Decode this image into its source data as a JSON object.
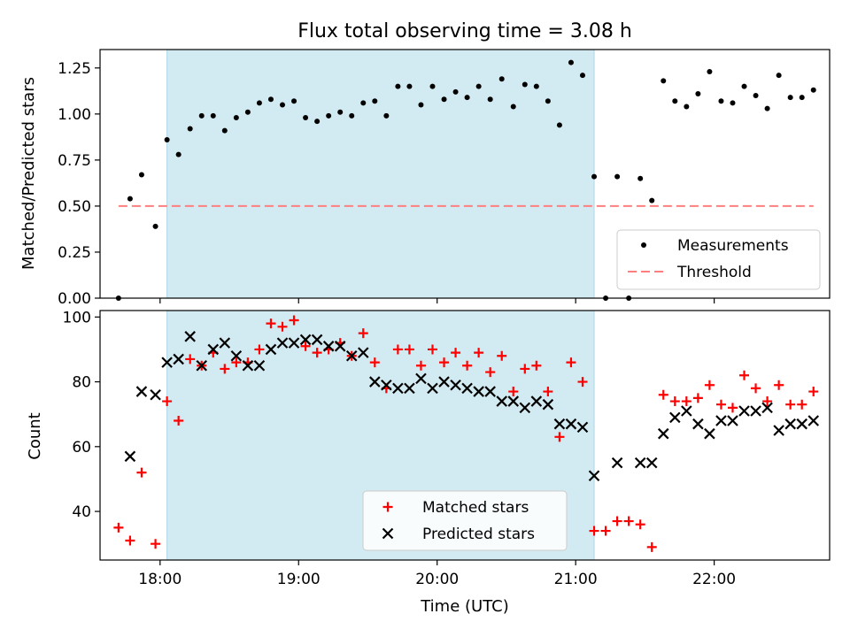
{
  "title": "Flux total observing time = 3.08 h",
  "colors": {
    "span": "#add8e6",
    "measurement": "#000000",
    "threshold": "#ff7f7f",
    "matched": "#ff0000",
    "predicted": "#000000"
  },
  "chart_data": [
    {
      "type": "scatter",
      "ylabel": "Matched/Predicted stars",
      "xlim": [
        "17:34",
        "22:50"
      ],
      "ylim": [
        0,
        1.35
      ],
      "yticks": [
        0,
        0.25,
        0.5,
        0.75,
        1.0,
        1.25
      ],
      "ytick_labels": [
        "0.00",
        "0.25",
        "0.50",
        "0.75",
        "1.00",
        "1.25"
      ],
      "xticks": [
        "18:00",
        "19:00",
        "20:00",
        "21:00",
        "22:00"
      ],
      "xtick_labels": [
        "18:00",
        "19:00",
        "20:00",
        "21:00",
        "22:00"
      ],
      "shaded_span": [
        "18:03",
        "21:08"
      ],
      "legend": {
        "position": "lower-right",
        "entries": [
          "Measurements",
          "Threshold"
        ]
      },
      "series": [
        {
          "name": "Measurements",
          "marker": "dot",
          "points": [
            [
              "17:42",
              0.0
            ],
            [
              "17:47",
              0.54
            ],
            [
              "17:52",
              0.67
            ],
            [
              "17:58",
              0.39
            ],
            [
              "18:03",
              0.86
            ],
            [
              "18:08",
              0.78
            ],
            [
              "18:13",
              0.92
            ],
            [
              "18:18",
              0.99
            ],
            [
              "18:23",
              0.99
            ],
            [
              "18:28",
              0.91
            ],
            [
              "18:33",
              0.98
            ],
            [
              "18:38",
              1.01
            ],
            [
              "18:43",
              1.06
            ],
            [
              "18:48",
              1.08
            ],
            [
              "18:53",
              1.05
            ],
            [
              "18:58",
              1.07
            ],
            [
              "19:03",
              0.98
            ],
            [
              "19:08",
              0.96
            ],
            [
              "19:13",
              0.99
            ],
            [
              "19:18",
              1.01
            ],
            [
              "19:23",
              0.99
            ],
            [
              "19:28",
              1.06
            ],
            [
              "19:33",
              1.07
            ],
            [
              "19:38",
              0.99
            ],
            [
              "19:43",
              1.15
            ],
            [
              "19:48",
              1.15
            ],
            [
              "19:53",
              1.05
            ],
            [
              "19:58",
              1.15
            ],
            [
              "20:03",
              1.08
            ],
            [
              "20:08",
              1.12
            ],
            [
              "20:13",
              1.09
            ],
            [
              "20:18",
              1.15
            ],
            [
              "20:23",
              1.08
            ],
            [
              "20:28",
              1.19
            ],
            [
              "20:33",
              1.04
            ],
            [
              "20:38",
              1.16
            ],
            [
              "20:43",
              1.15
            ],
            [
              "20:48",
              1.07
            ],
            [
              "20:53",
              0.94
            ],
            [
              "20:58",
              1.28
            ],
            [
              "21:03",
              1.21
            ],
            [
              "21:08",
              0.66
            ],
            [
              "21:13",
              0.0
            ],
            [
              "21:18",
              0.66
            ],
            [
              "21:23",
              0.0
            ],
            [
              "21:28",
              0.65
            ],
            [
              "21:33",
              0.53
            ],
            [
              "21:38",
              1.18
            ],
            [
              "21:43",
              1.07
            ],
            [
              "21:48",
              1.04
            ],
            [
              "21:53",
              1.11
            ],
            [
              "21:58",
              1.23
            ],
            [
              "22:03",
              1.07
            ],
            [
              "22:08",
              1.06
            ],
            [
              "22:13",
              1.15
            ],
            [
              "22:18",
              1.1
            ],
            [
              "22:23",
              1.03
            ],
            [
              "22:28",
              1.21
            ],
            [
              "22:33",
              1.09
            ],
            [
              "22:38",
              1.09
            ],
            [
              "22:43",
              1.13
            ]
          ]
        },
        {
          "name": "Threshold",
          "marker": "dashed-line",
          "points": [
            [
              "17:42",
              0.5
            ],
            [
              "22:43",
              0.5
            ]
          ]
        }
      ]
    },
    {
      "type": "scatter",
      "xlabel": "Time (UTC)",
      "ylabel": "Count",
      "xlim": [
        "17:34",
        "22:50"
      ],
      "ylim": [
        25,
        102
      ],
      "yticks": [
        40,
        60,
        80,
        100
      ],
      "ytick_labels": [
        "40",
        "60",
        "80",
        "100"
      ],
      "xticks": [
        "18:00",
        "19:00",
        "20:00",
        "21:00",
        "22:00"
      ],
      "xtick_labels": [
        "18:00",
        "19:00",
        "20:00",
        "21:00",
        "22:00"
      ],
      "shaded_span": [
        "18:03",
        "21:08"
      ],
      "legend": {
        "position": "lower-center",
        "entries": [
          "Matched stars",
          "Predicted stars"
        ]
      },
      "series": [
        {
          "name": "Matched stars",
          "marker": "plus",
          "points": [
            [
              "17:42",
              35
            ],
            [
              "17:47",
              31
            ],
            [
              "17:52",
              52
            ],
            [
              "17:58",
              30
            ],
            [
              "18:03",
              74
            ],
            [
              "18:08",
              68
            ],
            [
              "18:13",
              87
            ],
            [
              "18:18",
              85
            ],
            [
              "18:23",
              89
            ],
            [
              "18:28",
              84
            ],
            [
              "18:33",
              86
            ],
            [
              "18:38",
              86
            ],
            [
              "18:43",
              90
            ],
            [
              "18:48",
              98
            ],
            [
              "18:53",
              97
            ],
            [
              "18:58",
              99
            ],
            [
              "19:03",
              91
            ],
            [
              "19:08",
              89
            ],
            [
              "19:13",
              90
            ],
            [
              "19:18",
              92
            ],
            [
              "19:23",
              88
            ],
            [
              "19:28",
              95
            ],
            [
              "19:33",
              86
            ],
            [
              "19:38",
              78
            ],
            [
              "19:43",
              90
            ],
            [
              "19:48",
              90
            ],
            [
              "19:53",
              85
            ],
            [
              "19:58",
              90
            ],
            [
              "20:03",
              86
            ],
            [
              "20:08",
              89
            ],
            [
              "20:13",
              85
            ],
            [
              "20:18",
              89
            ],
            [
              "20:23",
              83
            ],
            [
              "20:28",
              88
            ],
            [
              "20:33",
              77
            ],
            [
              "20:38",
              84
            ],
            [
              "20:43",
              85
            ],
            [
              "20:48",
              77
            ],
            [
              "20:53",
              63
            ],
            [
              "20:58",
              86
            ],
            [
              "21:03",
              80
            ],
            [
              "21:08",
              34
            ],
            [
              "21:13",
              34
            ],
            [
              "21:18",
              37
            ],
            [
              "21:23",
              37
            ],
            [
              "21:28",
              36
            ],
            [
              "21:33",
              29
            ],
            [
              "21:38",
              76
            ],
            [
              "21:43",
              74
            ],
            [
              "21:48",
              74
            ],
            [
              "21:53",
              75
            ],
            [
              "21:58",
              79
            ],
            [
              "22:03",
              73
            ],
            [
              "22:08",
              72
            ],
            [
              "22:13",
              82
            ],
            [
              "22:18",
              78
            ],
            [
              "22:23",
              74
            ],
            [
              "22:28",
              79
            ],
            [
              "22:33",
              73
            ],
            [
              "22:38",
              73
            ],
            [
              "22:43",
              77
            ]
          ]
        },
        {
          "name": "Predicted stars",
          "marker": "x",
          "points": [
            [
              "17:47",
              57
            ],
            [
              "17:52",
              77
            ],
            [
              "17:58",
              76
            ],
            [
              "18:03",
              86
            ],
            [
              "18:08",
              87
            ],
            [
              "18:13",
              94
            ],
            [
              "18:18",
              85
            ],
            [
              "18:23",
              90
            ],
            [
              "18:28",
              92
            ],
            [
              "18:33",
              88
            ],
            [
              "18:38",
              85
            ],
            [
              "18:43",
              85
            ],
            [
              "18:48",
              90
            ],
            [
              "18:53",
              92
            ],
            [
              "18:58",
              92
            ],
            [
              "19:03",
              93
            ],
            [
              "19:08",
              93
            ],
            [
              "19:13",
              91
            ],
            [
              "19:18",
              91
            ],
            [
              "19:23",
              88
            ],
            [
              "19:28",
              89
            ],
            [
              "19:33",
              80
            ],
            [
              "19:38",
              79
            ],
            [
              "19:43",
              78
            ],
            [
              "19:48",
              78
            ],
            [
              "19:53",
              81
            ],
            [
              "19:58",
              78
            ],
            [
              "20:03",
              80
            ],
            [
              "20:08",
              79
            ],
            [
              "20:13",
              78
            ],
            [
              "20:18",
              77
            ],
            [
              "20:23",
              77
            ],
            [
              "20:28",
              74
            ],
            [
              "20:33",
              74
            ],
            [
              "20:38",
              72
            ],
            [
              "20:43",
              74
            ],
            [
              "20:48",
              73
            ],
            [
              "20:53",
              67
            ],
            [
              "20:58",
              67
            ],
            [
              "21:03",
              66
            ],
            [
              "21:08",
              51
            ],
            [
              "21:18",
              55
            ],
            [
              "21:28",
              55
            ],
            [
              "21:33",
              55
            ],
            [
              "21:38",
              64
            ],
            [
              "21:43",
              69
            ],
            [
              "21:48",
              71
            ],
            [
              "21:53",
              67
            ],
            [
              "21:58",
              64
            ],
            [
              "22:03",
              68
            ],
            [
              "22:08",
              68
            ],
            [
              "22:13",
              71
            ],
            [
              "22:18",
              71
            ],
            [
              "22:23",
              72
            ],
            [
              "22:28",
              65
            ],
            [
              "22:33",
              67
            ],
            [
              "22:38",
              67
            ],
            [
              "22:43",
              68
            ]
          ]
        }
      ]
    }
  ]
}
